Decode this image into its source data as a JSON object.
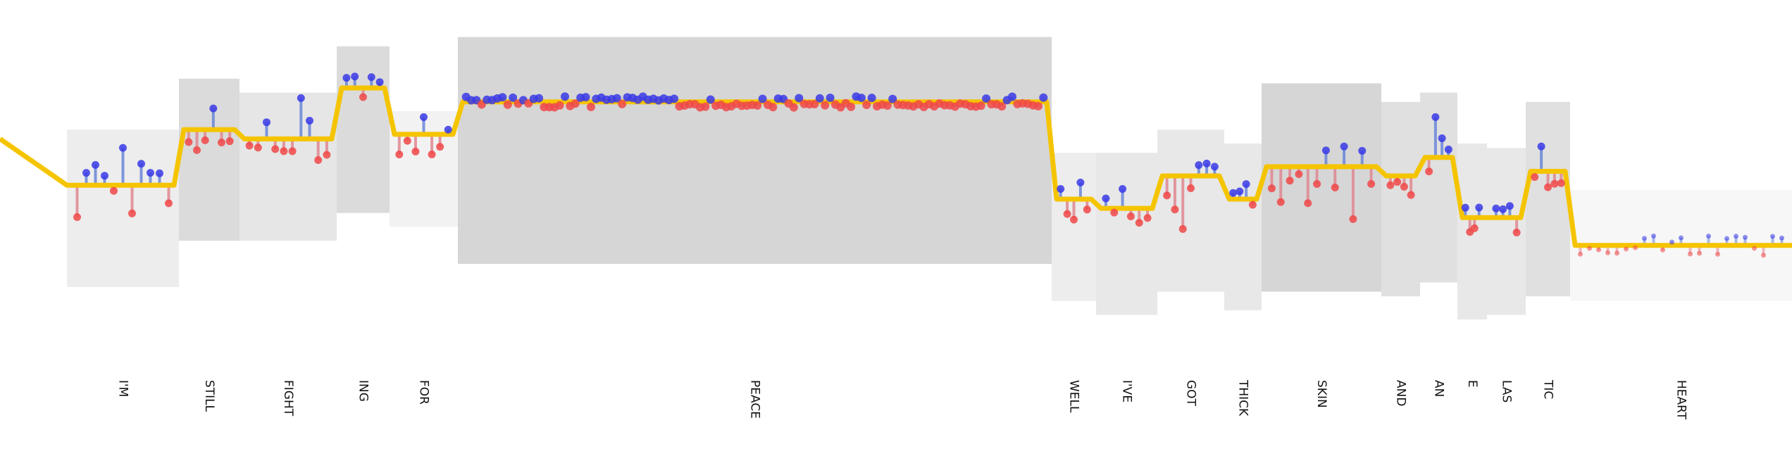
{
  "chart_data": {
    "type": "line",
    "title": "",
    "xlabel": "",
    "ylabel": "",
    "grid": false,
    "legend": "none",
    "colors": {
      "trend": "#f5c400",
      "positive": "#3a3ae6",
      "negative": "#f04848",
      "positive_stem": "#6a86d8",
      "negative_stem": "#e08890"
    },
    "words": [
      {
        "label": "I'M",
        "start": 95,
        "end": 254,
        "level": 0.6,
        "band_top": 0.72,
        "band_bottom": 0.38,
        "shade": 0.93
      },
      {
        "label": "STILL",
        "start": 254,
        "end": 340,
        "level": 0.72,
        "band_top": 0.83,
        "band_bottom": 0.48,
        "shade": 0.86
      },
      {
        "label": "FIGHT",
        "start": 340,
        "end": 478,
        "level": 0.7,
        "band_top": 0.8,
        "band_bottom": 0.48,
        "shade": 0.9
      },
      {
        "label": "ING",
        "start": 478,
        "end": 553,
        "level": 0.81,
        "band_top": 0.9,
        "band_bottom": 0.54,
        "shade": 0.86
      },
      {
        "label": "FOR",
        "start": 553,
        "end": 650,
        "level": 0.71,
        "band_top": 0.76,
        "band_bottom": 0.51,
        "shade": 0.95
      },
      {
        "label": "PEACE",
        "start": 650,
        "end": 1493,
        "level": 0.78,
        "band_top": 0.92,
        "band_bottom": 0.43,
        "shade": 0.84
      },
      {
        "label": "WELL",
        "start": 1493,
        "end": 1556,
        "level": 0.57,
        "band_top": 0.67,
        "band_bottom": 0.35,
        "shade": 0.93
      },
      {
        "label": "I'VE",
        "start": 1556,
        "end": 1643,
        "level": 0.55,
        "band_top": 0.67,
        "band_bottom": 0.32,
        "shade": 0.91
      },
      {
        "label": "GOT",
        "start": 1643,
        "end": 1738,
        "level": 0.62,
        "band_top": 0.72,
        "band_bottom": 0.37,
        "shade": 0.91
      },
      {
        "label": "THICK",
        "start": 1738,
        "end": 1791,
        "level": 0.57,
        "band_top": 0.69,
        "band_bottom": 0.33,
        "shade": 0.91
      },
      {
        "label": "SKIN",
        "start": 1791,
        "end": 1961,
        "level": 0.64,
        "band_top": 0.82,
        "band_bottom": 0.37,
        "shade": 0.84
      },
      {
        "label": "AND",
        "start": 1961,
        "end": 2016,
        "level": 0.62,
        "band_top": 0.78,
        "band_bottom": 0.36,
        "shade": 0.88
      },
      {
        "label": "AN",
        "start": 2016,
        "end": 2069,
        "level": 0.66,
        "band_top": 0.8,
        "band_bottom": 0.39,
        "shade": 0.88
      },
      {
        "label": "E",
        "start": 2069,
        "end": 2111,
        "level": 0.53,
        "band_top": 0.69,
        "band_bottom": 0.31,
        "shade": 0.91
      },
      {
        "label": "LAS",
        "start": 2111,
        "end": 2166,
        "level": 0.53,
        "band_top": 0.68,
        "band_bottom": 0.32,
        "shade": 0.91
      },
      {
        "label": "TIC",
        "start": 2166,
        "end": 2229,
        "level": 0.63,
        "band_top": 0.78,
        "band_bottom": 0.36,
        "shade": 0.88
      },
      {
        "label": "HEART",
        "start": 2229,
        "end": 2544,
        "level": 0.47,
        "band_top": 0.59,
        "band_bottom": 0.35,
        "shade": 0.97
      }
    ]
  }
}
